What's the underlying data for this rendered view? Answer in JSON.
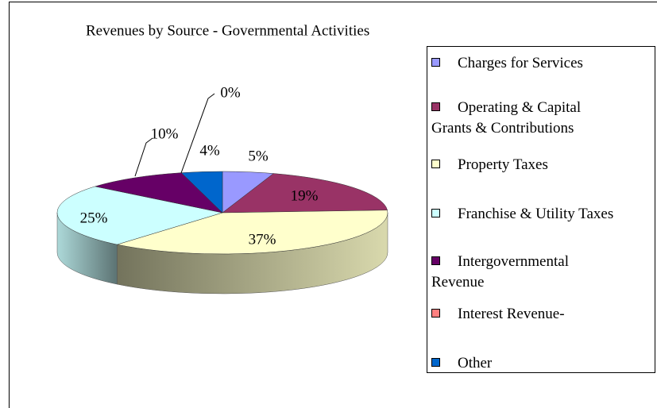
{
  "chart_data": {
    "type": "pie3d",
    "title": "Revenues by Source - Governmental Activities",
    "categories": [
      "Charges for Services",
      "Operating & Capital Grants & Contributions",
      "Property Taxes",
      "Franchise & Utility Taxes",
      "Intergovernmental Revenue",
      "Interest Revenue-",
      "Other"
    ],
    "values": [
      5,
      19,
      37,
      25,
      10,
      0,
      4
    ],
    "value_labels": [
      "5%",
      "19%",
      "37%",
      "25%",
      "10%",
      "0%",
      "4%"
    ],
    "colors": [
      "#9999ff",
      "#993366",
      "#ffffcc",
      "#ccffff",
      "#660066",
      "#ff8080",
      "#0066cc"
    ],
    "legend": "right"
  }
}
